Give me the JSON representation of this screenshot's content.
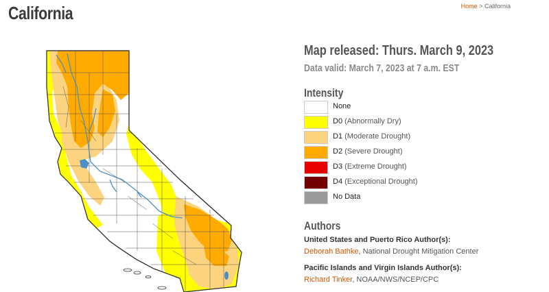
{
  "page": {
    "title": "California"
  },
  "breadcrumb": {
    "home": "Home",
    "separator": ">",
    "current": "California"
  },
  "map_info": {
    "released": "Map released: Thurs. March 9, 2023",
    "valid": "Data valid: March 7, 2023 at 7 a.m. EST"
  },
  "legend": {
    "heading": "Intensity",
    "items": [
      {
        "code": "None",
        "desc": "",
        "color": "#ffffff"
      },
      {
        "code": "D0",
        "desc": "(Abnormally Dry)",
        "color": "#ffff00"
      },
      {
        "code": "D1",
        "desc": "(Moderate Drought)",
        "color": "#fcd37f"
      },
      {
        "code": "D2",
        "desc": "(Severe Drought)",
        "color": "#ffaa00"
      },
      {
        "code": "D3",
        "desc": "(Extreme Drought)",
        "color": "#e60000"
      },
      {
        "code": "D4",
        "desc": "(Exceptional Drought)",
        "color": "#730000"
      },
      {
        "code": "No Data",
        "desc": "",
        "color": "#9b9b9b"
      }
    ]
  },
  "authors": {
    "heading": "Authors",
    "groups": [
      {
        "label": "United States and Puerto Rico Author(s):",
        "name": "Deborah Bathke",
        "org": ", National Drought Mitigation Center"
      },
      {
        "label": "Pacific Islands and Virgin Islands Author(s):",
        "name": "Richard Tinker",
        "org": ", NOAA/NWS/NCEP/CPC"
      }
    ]
  },
  "map_colors": {
    "none": "#ffffff",
    "d0": "#ffff00",
    "d1": "#fcd37f",
    "d2": "#ffaa00",
    "river": "#4a90c2",
    "border": "#333333"
  }
}
